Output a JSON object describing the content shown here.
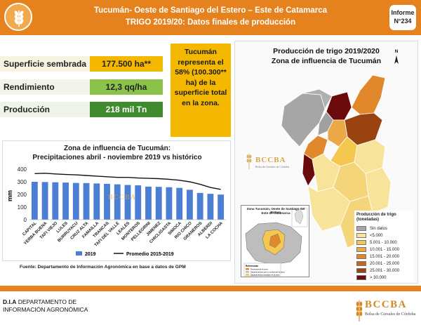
{
  "header": {
    "title_line1": "Tucumán- Oeste de Santiago del Estero – Este de Catamarca",
    "title_line2": "TRIGO 2019/20: Datos finales de producción",
    "report_label": "Informe",
    "report_number": "N°234",
    "brand_color": "#e6821e"
  },
  "stats": [
    {
      "label": "Superficie sembrada",
      "value": "177.500 ha**",
      "color": "#f5b800"
    },
    {
      "label": "Rendimiento",
      "value": "12,3 qq/ha",
      "color": "#8bc34a"
    },
    {
      "label": "Producción",
      "value": "218 mil Tn",
      "color": "#3f8b2d"
    }
  ],
  "callout": {
    "text": "Tucumán representa el 58% (100.300** ha) de la superficie total en la zona."
  },
  "chart_data": {
    "type": "bar",
    "title": "Zona de influencia de Tucumán:",
    "subtitle": "Precipitaciones abril - noviembre 2019 vs histórico",
    "ylabel": "mm",
    "ylim": [
      0,
      400
    ],
    "yticks": [
      0,
      100,
      200,
      300,
      400
    ],
    "categories": [
      "CAPITAL",
      "YERBA BUENA",
      "TAFI VIEJO",
      "LULES",
      "BURRUYACU",
      "CRUZ ALTA",
      "FAMAILLA",
      "TRANCAS",
      "TAFI DEL VALLE",
      "LEALES",
      "MONTEROS",
      "PELLEGRINI",
      "JIMENEZ",
      "CHICLIGASTA",
      "SIMOCA",
      "RIO CHICO",
      "GRANEROS",
      "ALBERDI",
      "LA COCHA"
    ],
    "series": [
      {
        "name": "2019",
        "type": "bar",
        "color": "#4a7fd4",
        "values": [
          300,
          298,
          296,
          294,
          291,
          290,
          287,
          284,
          280,
          275,
          272,
          262,
          260,
          257,
          252,
          237,
          212,
          205,
          199
        ]
      },
      {
        "name": "Promedio 2015-2019",
        "type": "line",
        "color": "#111111",
        "values": [
          365,
          368,
          362,
          358,
          355,
          350,
          345,
          340,
          335,
          335,
          330,
          327,
          325,
          320,
          312,
          300,
          280,
          255,
          240
        ]
      }
    ],
    "legend": "bottom",
    "grid": false
  },
  "source": "Fuente: Departamento de Información Agronómica en base a datos de GPM",
  "map": {
    "title_line1": "Producción de trigo 2019/2020",
    "title_line2": "Zona de influencia de Tucumán",
    "north_label": "N",
    "inset_title_line1": "Zona Tucumán, Oeste de Santiago del Estero",
    "inset_title_line2": "Este de Catamarca",
    "inset_ref_title": "Referencias",
    "inset_ref_items": [
      "Provincias de la zona",
      "Departamentos que no conforman la zona",
      "Departamentos incluidos en la zona"
    ],
    "legend_title": "Producción de trigo (toneladas)",
    "legend": [
      {
        "label": "Sin datos",
        "color": "#a6a6a6"
      },
      {
        "label": "<5.000",
        "color": "#f7e39a"
      },
      {
        "label": "5.001 - 10.000",
        "color": "#f4c84e"
      },
      {
        "label": "10.001 - 15.000",
        "color": "#eba846"
      },
      {
        "label": "15.001 - 20.000",
        "color": "#e2882c"
      },
      {
        "label": "20.001 - 25.000",
        "color": "#c76518"
      },
      {
        "label": "25.001 - 30.000",
        "color": "#9a4312"
      },
      {
        "label": "> 30.000",
        "color": "#6b0a0a"
      }
    ]
  },
  "branding": {
    "watermark": "BCCBA",
    "watermark_sub": "Bolsa de Cereales de Córdoba"
  },
  "footer": {
    "org_prefix": "D.I.A",
    "org_line1": "DEPARTAMENTO DE",
    "org_line2": "INFORMACIÓN AGRONÓMICA",
    "logo_text": "BCCBA",
    "logo_sub": "Bolsa de Cereales de Córdoba"
  }
}
